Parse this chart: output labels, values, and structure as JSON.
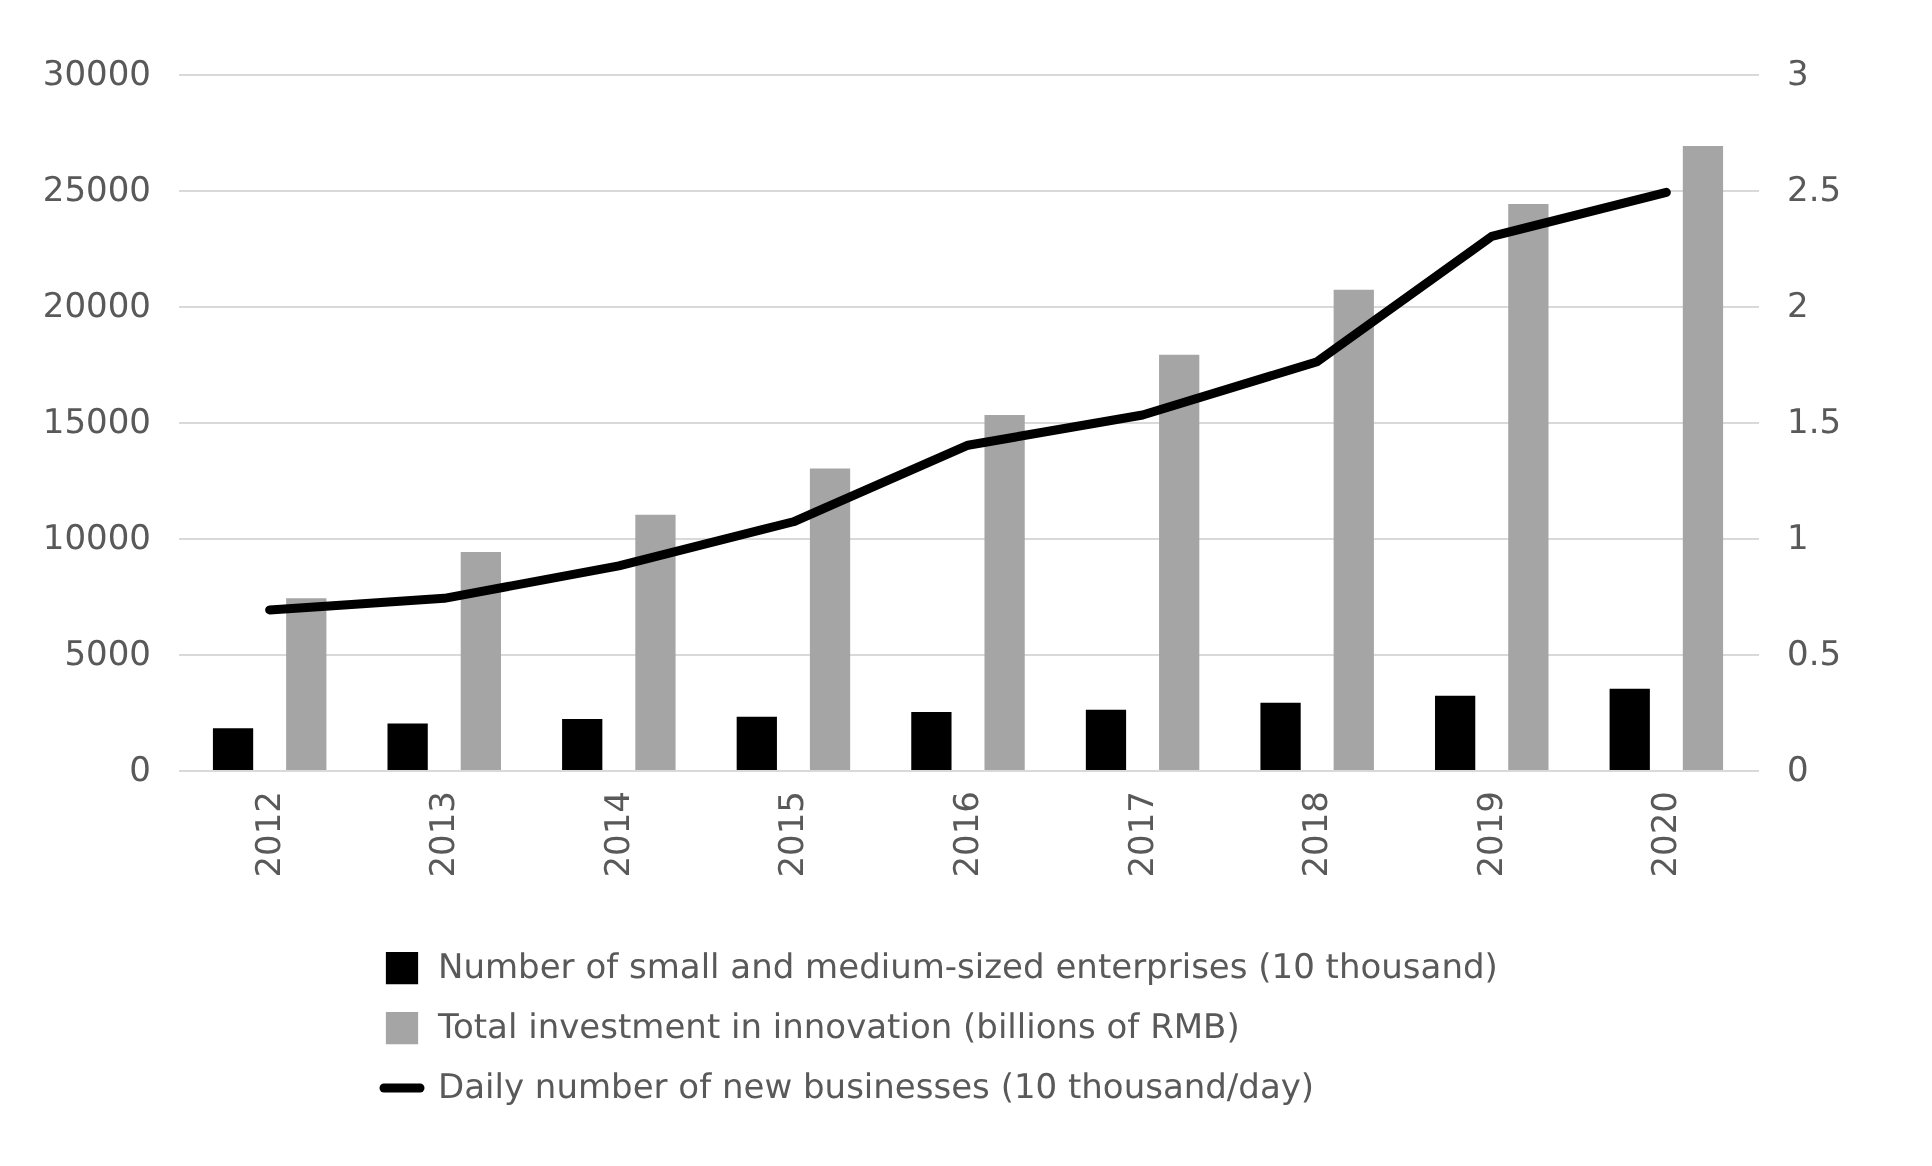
{
  "chart_data": {
    "type": "bar",
    "categories": [
      "2012",
      "2013",
      "2014",
      "2015",
      "2016",
      "2017",
      "2018",
      "2019",
      "2020"
    ],
    "series": [
      {
        "name": "Number of small and medium-sized enterprises (10 thousand)",
        "color": "#000000",
        "values": [
          1800,
          2000,
          2200,
          2300,
          2500,
          2600,
          2900,
          3200,
          3500
        ]
      },
      {
        "name": "Total investment in innovation (billions of RMB)",
        "color": "#a5a5a5",
        "values": [
          7400,
          9400,
          11000,
          13000,
          15300,
          17900,
          20700,
          24400,
          26900
        ]
      },
      {
        "name": "Daily number of new businesses (10 thousand/day)",
        "color": "#000000",
        "type": "line",
        "axis": "y2",
        "values": [
          0.69,
          0.74,
          0.88,
          1.07,
          1.4,
          1.53,
          1.76,
          2.3,
          2.49
        ]
      }
    ],
    "ylim": [
      0,
      30000
    ],
    "yticks": [
      0,
      5000,
      10000,
      15000,
      20000,
      25000,
      30000
    ],
    "y2lim": [
      0,
      3
    ],
    "y2ticks": [
      0,
      0.5,
      1,
      1.5,
      2,
      2.5,
      3
    ],
    "grid": "y",
    "legend": "bottom",
    "marker": "none",
    "line_style": "solid"
  }
}
